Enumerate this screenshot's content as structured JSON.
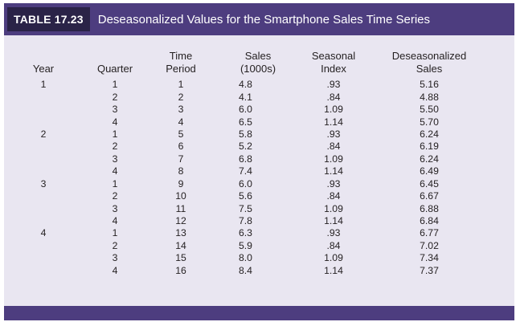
{
  "table_label": "TABLE 17.23",
  "caption": "Deseasonalized Values for the Smartphone Sales Time Series",
  "columns": {
    "year": "Year",
    "quarter": "Quarter",
    "time_line1": "Time",
    "time_line2": "Period",
    "sales_line1": "Sales",
    "sales_line2": "(1000s)",
    "index_line1": "Seasonal",
    "index_line2": "Index",
    "deseason_line1": "Deseasonalized",
    "deseason_line2": "Sales"
  },
  "rows": [
    {
      "year": "1",
      "quarter": "1",
      "time": "1",
      "sales": "4.8",
      "index": ".93",
      "deseason": "5.16"
    },
    {
      "year": "",
      "quarter": "2",
      "time": "2",
      "sales": "4.1",
      "index": ".84",
      "deseason": "4.88"
    },
    {
      "year": "",
      "quarter": "3",
      "time": "3",
      "sales": "6.0",
      "index": "1.09",
      "deseason": "5.50"
    },
    {
      "year": "",
      "quarter": "4",
      "time": "4",
      "sales": "6.5",
      "index": "1.14",
      "deseason": "5.70"
    },
    {
      "year": "2",
      "quarter": "1",
      "time": "5",
      "sales": "5.8",
      "index": ".93",
      "deseason": "6.24"
    },
    {
      "year": "",
      "quarter": "2",
      "time": "6",
      "sales": "5.2",
      "index": ".84",
      "deseason": "6.19"
    },
    {
      "year": "",
      "quarter": "3",
      "time": "7",
      "sales": "6.8",
      "index": "1.09",
      "deseason": "6.24"
    },
    {
      "year": "",
      "quarter": "4",
      "time": "8",
      "sales": "7.4",
      "index": "1.14",
      "deseason": "6.49"
    },
    {
      "year": "3",
      "quarter": "1",
      "time": "9",
      "sales": "6.0",
      "index": ".93",
      "deseason": "6.45"
    },
    {
      "year": "",
      "quarter": "2",
      "time": "10",
      "sales": "5.6",
      "index": ".84",
      "deseason": "6.67"
    },
    {
      "year": "",
      "quarter": "3",
      "time": "11",
      "sales": "7.5",
      "index": "1.09",
      "deseason": "6.88"
    },
    {
      "year": "",
      "quarter": "4",
      "time": "12",
      "sales": "7.8",
      "index": "1.14",
      "deseason": "6.84"
    },
    {
      "year": "4",
      "quarter": "1",
      "time": "13",
      "sales": "6.3",
      "index": ".93",
      "deseason": "6.77"
    },
    {
      "year": "",
      "quarter": "2",
      "time": "14",
      "sales": "5.9",
      "index": ".84",
      "deseason": "7.02"
    },
    {
      "year": "",
      "quarter": "3",
      "time": "15",
      "sales": "8.0",
      "index": "1.09",
      "deseason": "7.34"
    },
    {
      "year": "",
      "quarter": "4",
      "time": "16",
      "sales": "8.4",
      "index": "1.14",
      "deseason": "7.37"
    }
  ]
}
